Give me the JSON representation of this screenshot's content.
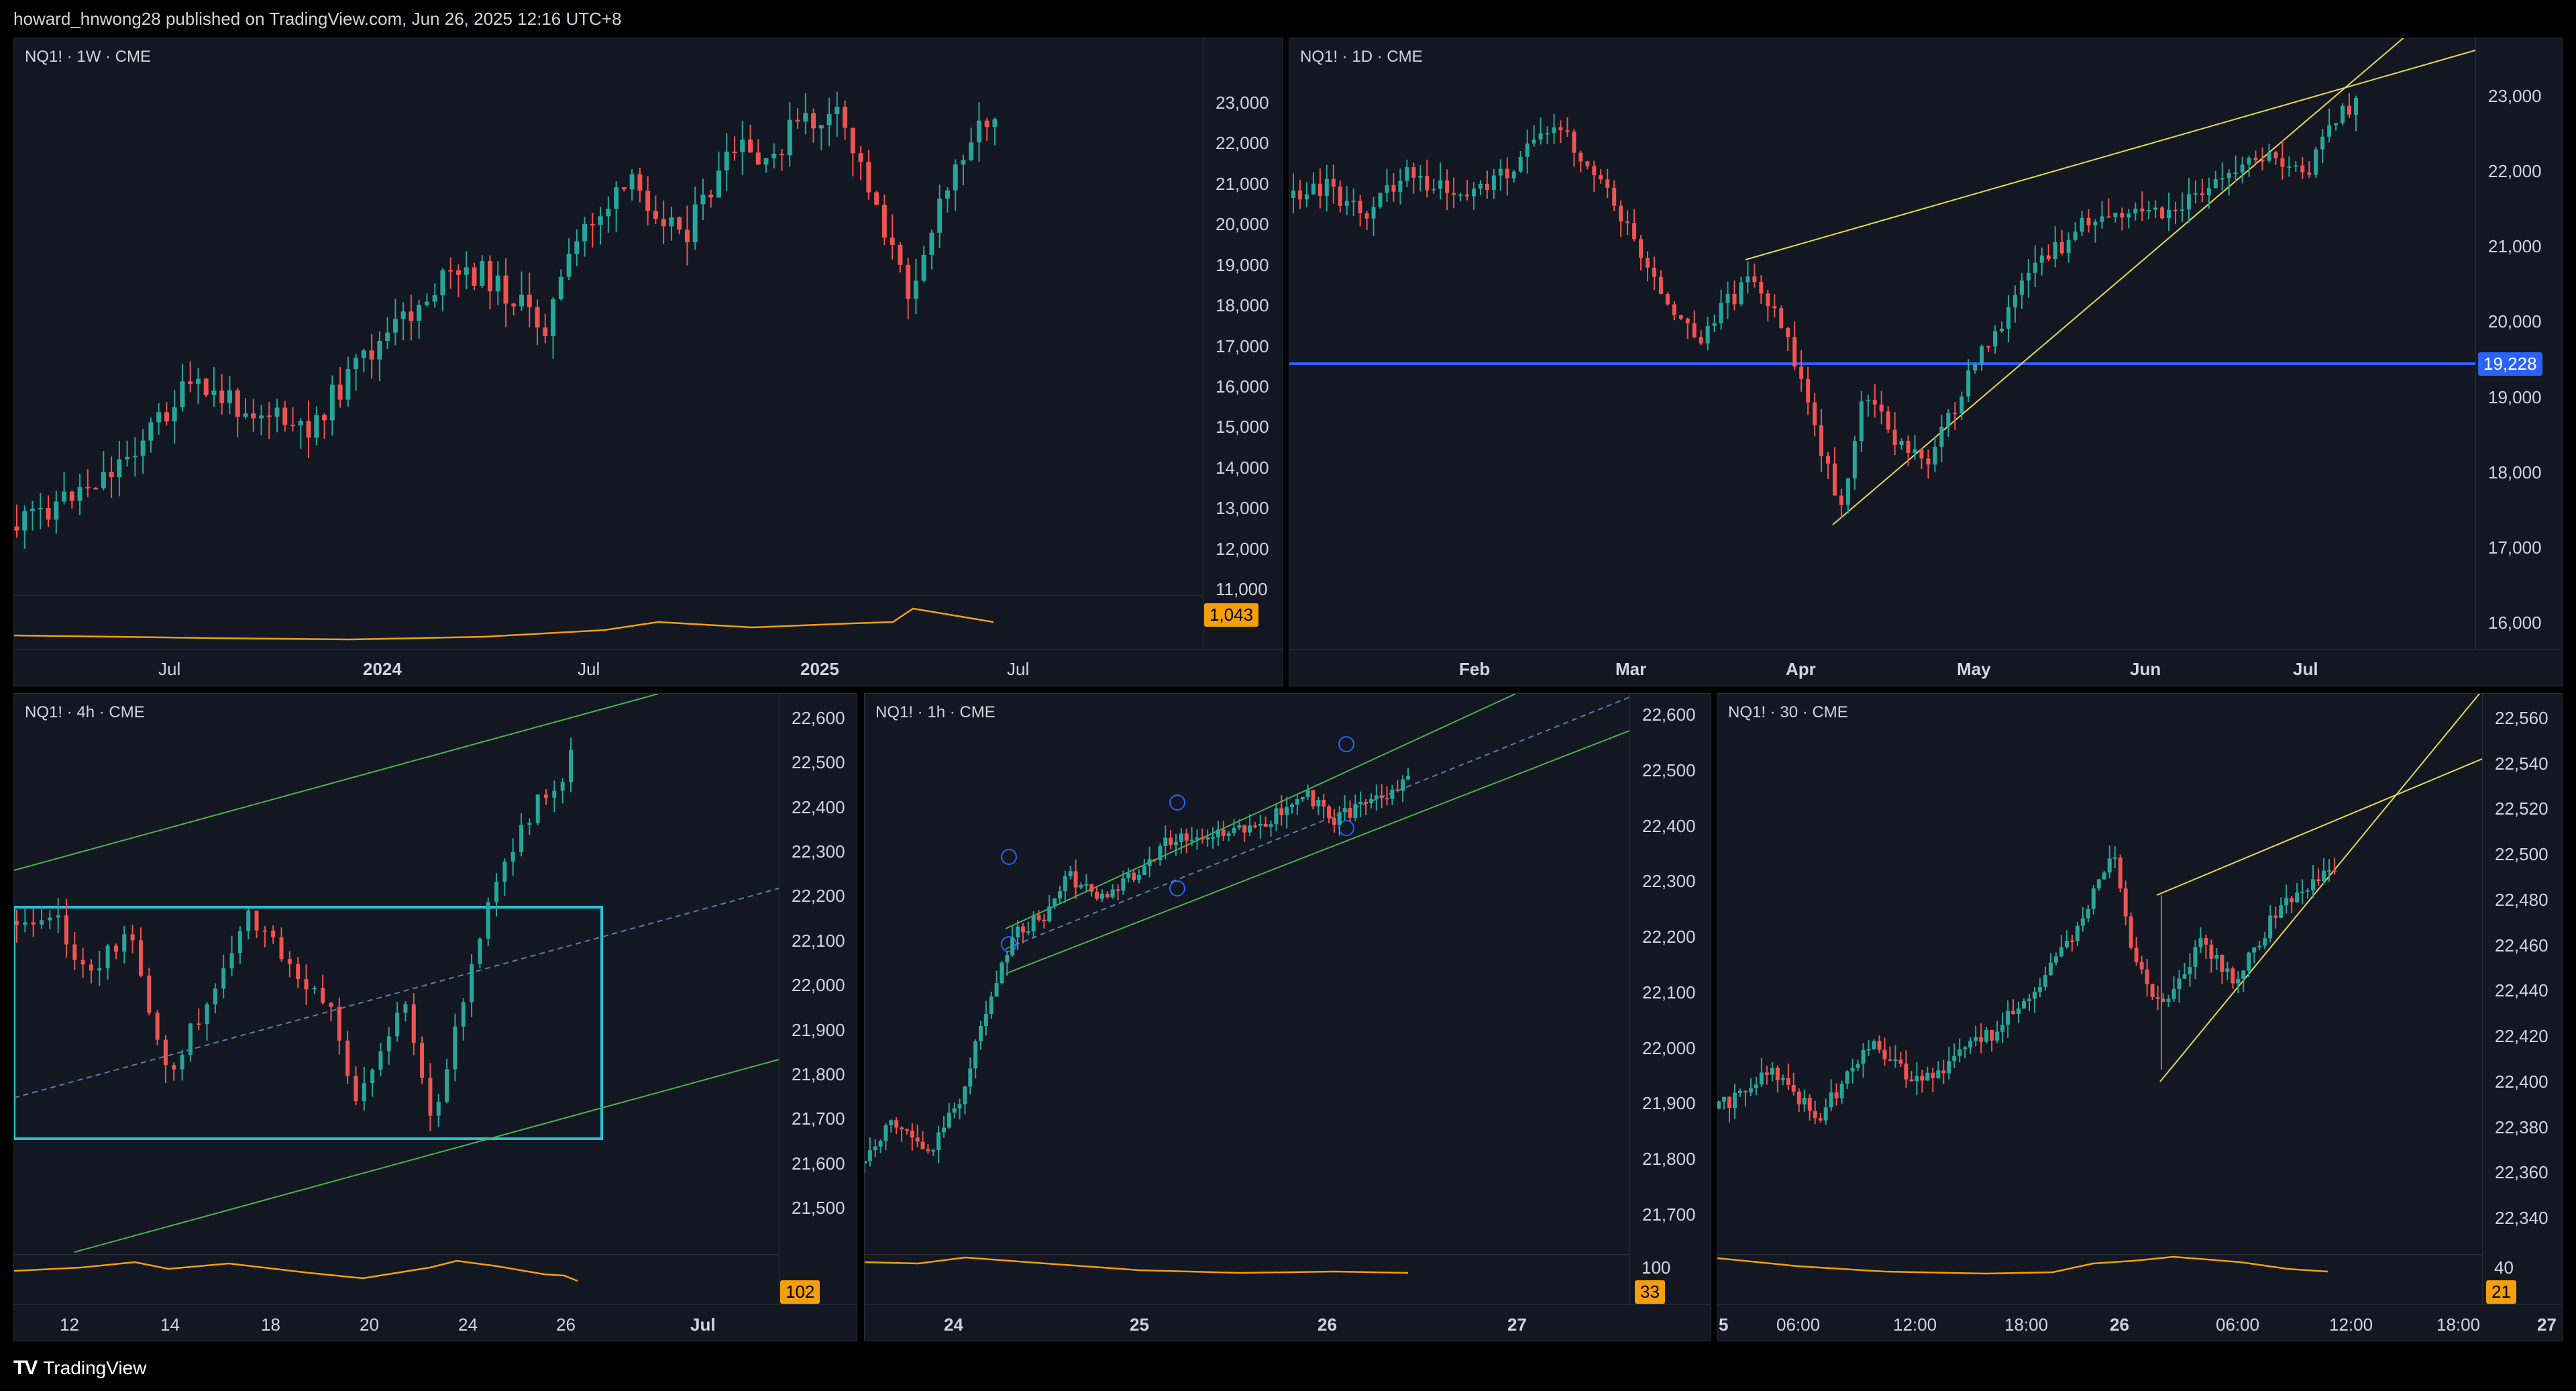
{
  "header": {
    "text": "howard_hnwong28 published on TradingView.com, Jun 26, 2025 12:16 UTC+8"
  },
  "footer": {
    "logo": "TV",
    "brand": "TradingView"
  },
  "colors": {
    "up": "#26a69a",
    "down": "#ef5350",
    "bg": "#131722",
    "osc": "#f59f0a"
  },
  "panels": [
    {
      "id": "weekly",
      "symbol": "NQ1! · 1W · CME",
      "price_ticks": [
        "23,000",
        "22,000",
        "21,000",
        "20,000",
        "19,000",
        "18,000",
        "17,000",
        "16,000",
        "15,000",
        "14,000",
        "13,000",
        "12,000",
        "11,000"
      ],
      "time_ticks": [
        {
          "label": "Jul",
          "bold": false
        },
        {
          "label": "2024",
          "bold": true
        },
        {
          "label": "Jul",
          "bold": false
        },
        {
          "label": "2025",
          "bold": true
        },
        {
          "label": "Jul",
          "bold": false
        }
      ],
      "osc_value": "1,043"
    },
    {
      "id": "daily",
      "symbol": "NQ1! · 1D · CME",
      "price_ticks": [
        "23,000",
        "22,000",
        "21,000",
        "20,000",
        "19,000",
        "18,000",
        "17,000",
        "16,000"
      ],
      "time_ticks": [
        {
          "label": "Feb",
          "bold": true
        },
        {
          "label": "Mar",
          "bold": true
        },
        {
          "label": "Apr",
          "bold": true
        },
        {
          "label": "May",
          "bold": true
        },
        {
          "label": "Jun",
          "bold": true
        },
        {
          "label": "Jul",
          "bold": true
        }
      ],
      "level_badge": "19,228"
    },
    {
      "id": "h4",
      "symbol": "NQ1! · 4h · CME",
      "price_ticks": [
        "22,600",
        "22,500",
        "22,400",
        "22,300",
        "22,200",
        "22,100",
        "22,000",
        "21,900",
        "21,800",
        "21,700",
        "21,600",
        "21,500"
      ],
      "time_ticks": [
        {
          "label": "12",
          "bold": false
        },
        {
          "label": "14",
          "bold": false
        },
        {
          "label": "18",
          "bold": false
        },
        {
          "label": "20",
          "bold": false
        },
        {
          "label": "24",
          "bold": false
        },
        {
          "label": "26",
          "bold": false
        },
        {
          "label": "Jul",
          "bold": true
        }
      ],
      "osc_value": "102"
    },
    {
      "id": "h1",
      "symbol": "NQ1! · 1h · CME",
      "price_ticks": [
        "22,600",
        "22,500",
        "22,400",
        "22,300",
        "22,200",
        "22,100",
        "22,000",
        "21,900",
        "21,800",
        "21,700"
      ],
      "time_ticks": [
        {
          "label": "24",
          "bold": true
        },
        {
          "label": "25",
          "bold": true
        },
        {
          "label": "26",
          "bold": true
        },
        {
          "label": "27",
          "bold": true
        }
      ],
      "osc_top": "100",
      "osc_value": "33"
    },
    {
      "id": "m30",
      "symbol": "NQ1! · 30 · CME",
      "price_ticks": [
        "22,560",
        "22,540",
        "22,520",
        "22,500",
        "22,480",
        "22,460",
        "22,440",
        "22,420",
        "22,400",
        "22,380",
        "22,360",
        "22,340"
      ],
      "time_ticks": [
        {
          "label": "5",
          "bold": true
        },
        {
          "label": "06:00",
          "bold": false
        },
        {
          "label": "12:00",
          "bold": false
        },
        {
          "label": "18:00",
          "bold": false
        },
        {
          "label": "26",
          "bold": true
        },
        {
          "label": "06:00",
          "bold": false
        },
        {
          "label": "12:00",
          "bold": false
        },
        {
          "label": "18:00",
          "bold": false
        },
        {
          "label": "27",
          "bold": true
        }
      ],
      "osc_top": "40",
      "osc_value": "21"
    }
  ]
}
